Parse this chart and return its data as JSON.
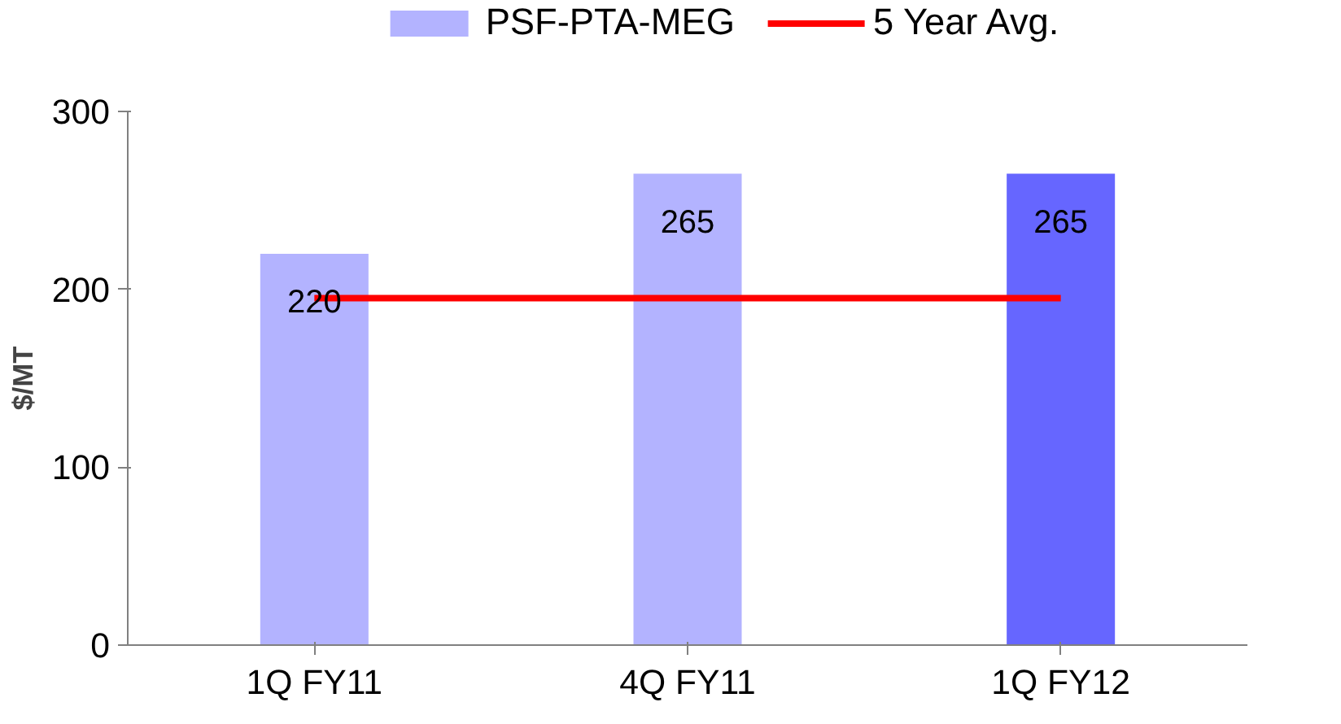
{
  "chart_data": {
    "type": "bar",
    "ylabel": "$/MT",
    "categories": [
      "1Q FY11",
      "4Q FY11",
      "1Q FY12"
    ],
    "ylim": [
      0,
      300
    ],
    "yticks": [
      0,
      100,
      200,
      300
    ],
    "grid": false,
    "legend": "top",
    "series": [
      {
        "name": "PSF-PTA-MEG",
        "color": "#b3b3ff",
        "colors": [
          "#b3b3ff",
          "#b3b3ff",
          "#6666ff"
        ],
        "values": [
          220,
          265,
          265
        ],
        "value_labels": [
          "220",
          "265",
          "265"
        ]
      },
      {
        "name": "5 Year Avg.",
        "type": "line",
        "color": "#ff0000",
        "values": [
          195,
          195,
          195
        ]
      }
    ]
  }
}
